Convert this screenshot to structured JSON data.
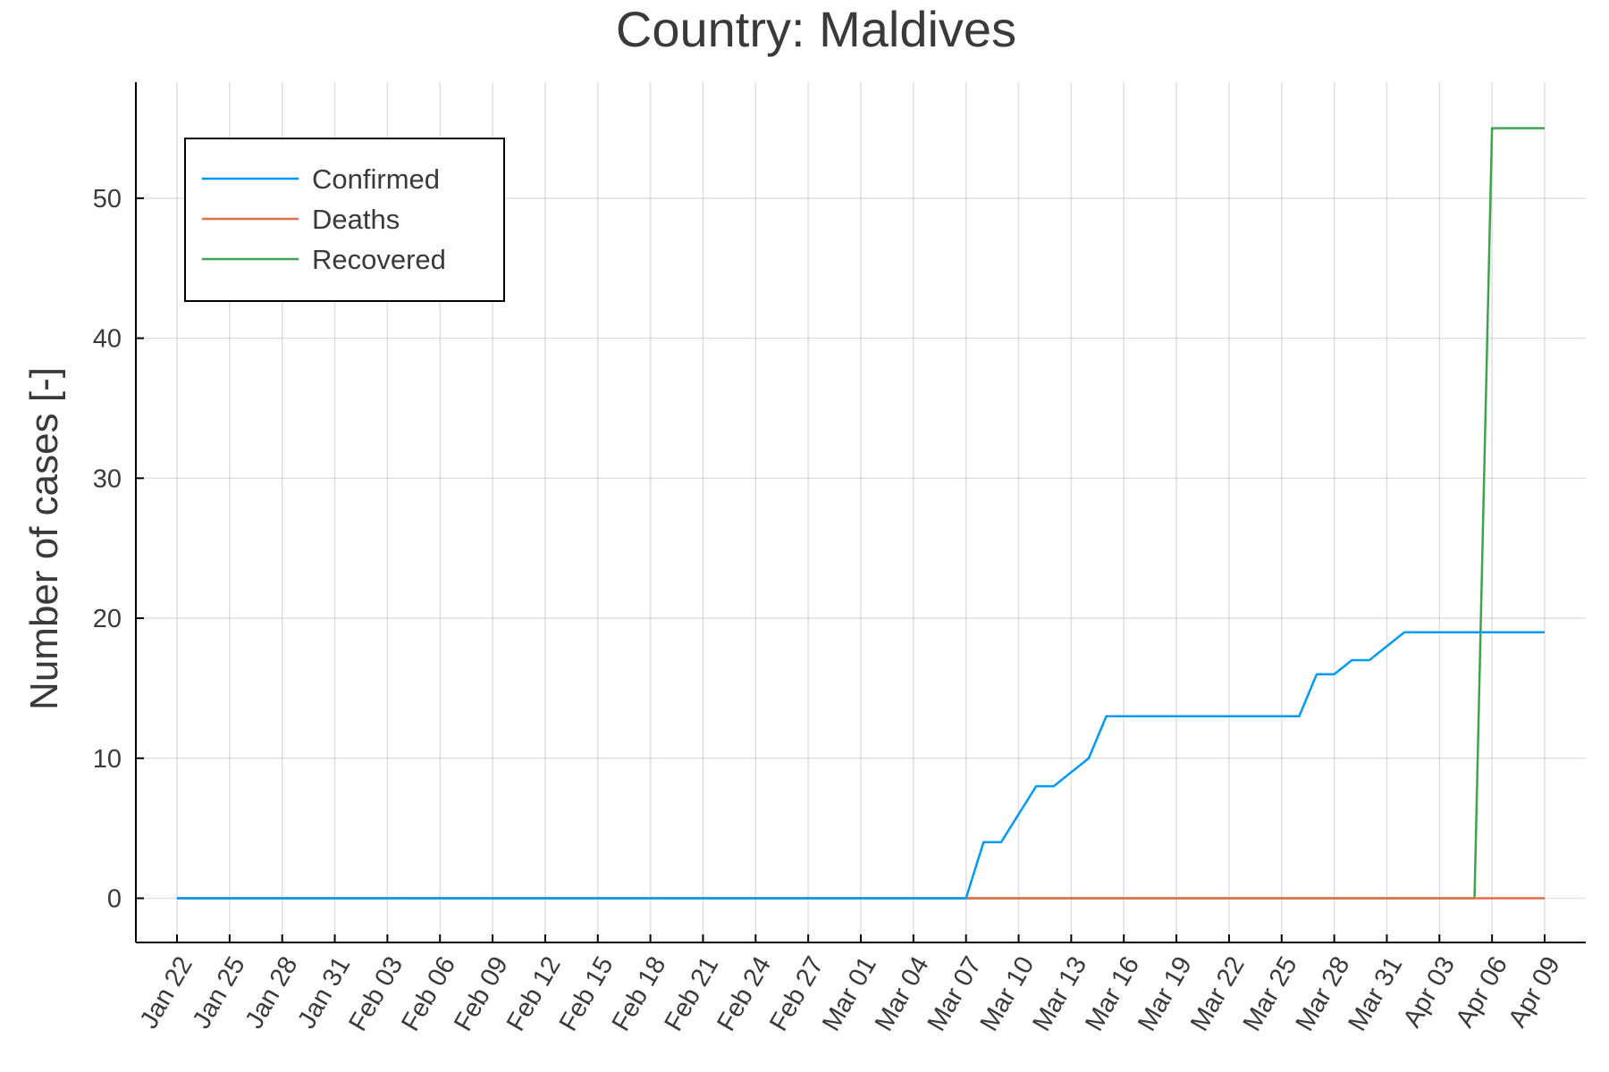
{
  "chart_data": {
    "type": "line",
    "title": "Country: Maldives",
    "ylabel": "Number of cases [-]",
    "xlabel": "",
    "x_start": "2020-01-22",
    "x_end": "2020-04-09",
    "x_ticks": [
      "Jan 22",
      "Jan 25",
      "Jan 28",
      "Jan 31",
      "Feb 03",
      "Feb 06",
      "Feb 09",
      "Feb 12",
      "Feb 15",
      "Feb 18",
      "Feb 21",
      "Feb 24",
      "Feb 27",
      "Mar 01",
      "Mar 04",
      "Mar 07",
      "Mar 10",
      "Mar 13",
      "Mar 16",
      "Mar 19",
      "Mar 22",
      "Mar 25",
      "Mar 28",
      "Mar 31",
      "Apr 03",
      "Apr 06",
      "Apr 09"
    ],
    "y_ticks": [
      0,
      10,
      20,
      30,
      40,
      50
    ],
    "ylim": [
      -1.5,
      56.5
    ],
    "grid": true,
    "legend_position": "top-left",
    "series": [
      {
        "name": "Confirmed",
        "color": "#009af9",
        "points": [
          [
            "2020-01-22",
            0
          ],
          [
            "2020-03-07",
            0
          ],
          [
            "2020-03-08",
            4
          ],
          [
            "2020-03-09",
            4
          ],
          [
            "2020-03-10",
            6
          ],
          [
            "2020-03-11",
            8
          ],
          [
            "2020-03-12",
            8
          ],
          [
            "2020-03-13",
            9
          ],
          [
            "2020-03-14",
            10
          ],
          [
            "2020-03-15",
            13
          ],
          [
            "2020-03-26",
            13
          ],
          [
            "2020-03-27",
            16
          ],
          [
            "2020-03-28",
            16
          ],
          [
            "2020-03-29",
            17
          ],
          [
            "2020-03-30",
            17
          ],
          [
            "2020-03-31",
            18
          ],
          [
            "2020-04-01",
            19
          ],
          [
            "2020-04-09",
            19
          ]
        ]
      },
      {
        "name": "Deaths",
        "color": "#e26f46",
        "points": [
          [
            "2020-01-22",
            0
          ],
          [
            "2020-04-09",
            0
          ]
        ]
      },
      {
        "name": "Recovered",
        "color": "#3da44d",
        "points": [
          [
            "2020-01-22",
            0
          ],
          [
            "2020-04-05",
            0
          ],
          [
            "2020-04-06",
            55
          ],
          [
            "2020-04-09",
            55
          ]
        ]
      }
    ]
  }
}
